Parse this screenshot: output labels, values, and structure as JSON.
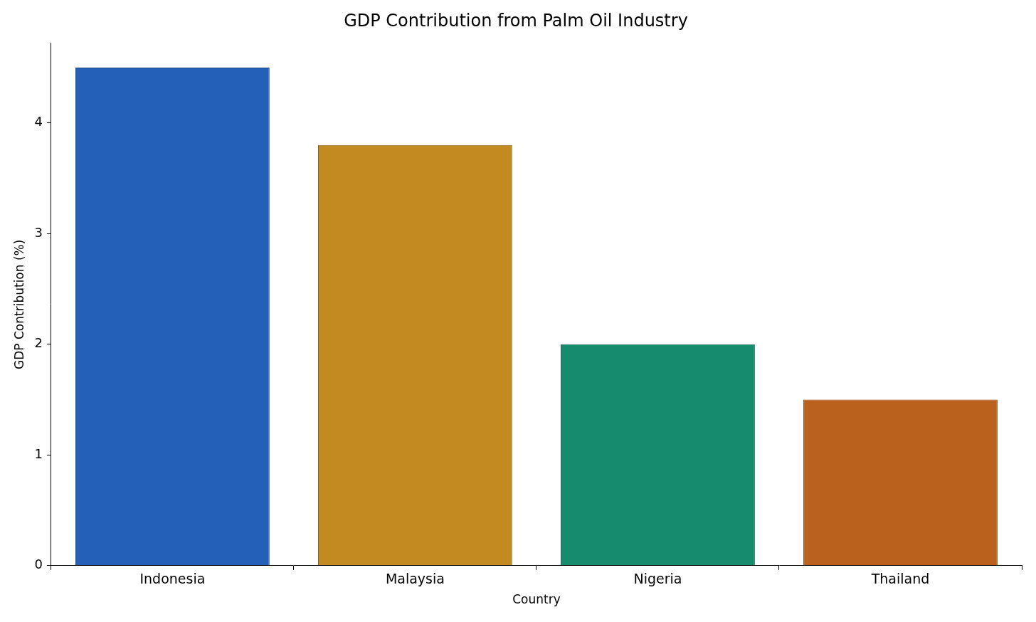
{
  "chart_data": {
    "type": "bar",
    "title": "GDP Contribution from Palm Oil Industry",
    "x_label": "Country",
    "y_label": "GDP Contribution (%)",
    "categories": [
      "Indonesia",
      "Malaysia",
      "Nigeria",
      "Thailand"
    ],
    "values": [
      4.5,
      3.8,
      2.0,
      1.5
    ],
    "colors": [
      "#2460b8",
      "#c48a22",
      "#178c6c",
      "#bb611e"
    ],
    "ylim": [
      0,
      4.72
    ],
    "yticks": [
      0,
      1,
      2,
      3,
      4
    ],
    "grid": false
  }
}
